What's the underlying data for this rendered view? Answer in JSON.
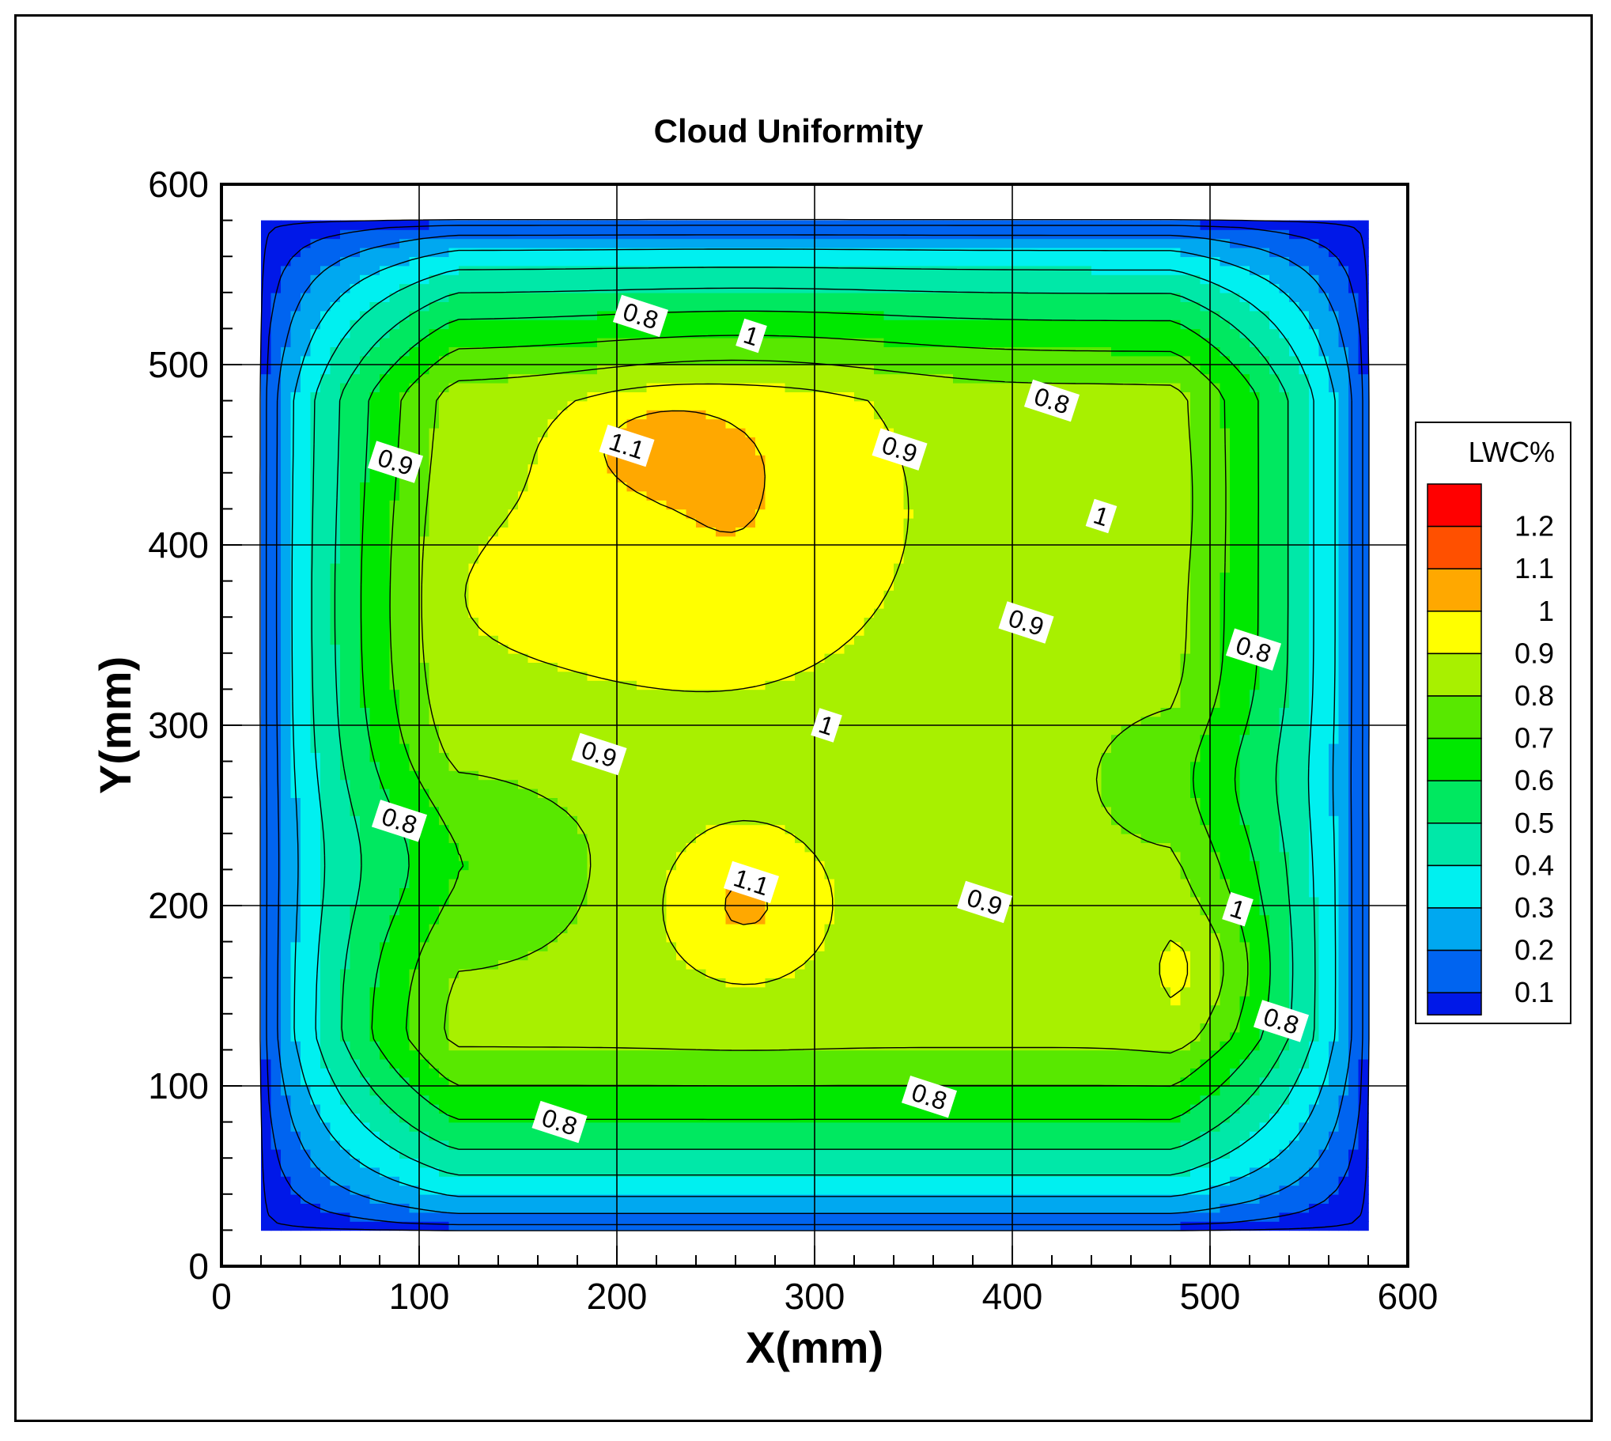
{
  "chart_data": {
    "type": "heatmap",
    "subtype": "filled-contour",
    "title": "Cloud Uniformity",
    "xlabel": "X(mm)",
    "ylabel": "Y(mm)",
    "xlim": [
      0,
      600
    ],
    "ylim": [
      0,
      600
    ],
    "xticks": [
      "0",
      "100",
      "200",
      "300",
      "400",
      "500",
      "600"
    ],
    "yticks": [
      "0",
      "100",
      "200",
      "300",
      "400",
      "500",
      "600"
    ],
    "grid": true,
    "legend": {
      "title": "LWC%",
      "placement": "right",
      "levels": [
        "1.2",
        "1.1",
        "1",
        "0.9",
        "0.8",
        "0.7",
        "0.6",
        "0.5",
        "0.4",
        "0.3",
        "0.2",
        "0.1"
      ]
    },
    "colors": {
      "0.1": "#0018e8",
      "0.2": "#0064f0",
      "0.3": "#00a8f0",
      "0.4": "#00f0f0",
      "0.5": "#00e8a8",
      "0.6": "#00e860",
      "0.7": "#00e800",
      "0.8": "#58e800",
      "0.9": "#a8f000",
      "1": "#ffff00",
      "1.1": "#ffa800",
      "1.2": "#ff5000",
      "1.3": "#ff0000"
    },
    "data_extent": {
      "x": [
        18,
        582
      ],
      "y": [
        18,
        582
      ]
    },
    "contour_labels": [
      {
        "text": "0.8",
        "x": 212,
        "y": 527
      },
      {
        "text": "1",
        "x": 268,
        "y": 516
      },
      {
        "text": "1.1",
        "x": 205,
        "y": 455
      },
      {
        "text": "0.9",
        "x": 88,
        "y": 446
      },
      {
        "text": "0.9",
        "x": 343,
        "y": 453
      },
      {
        "text": "0.8",
        "x": 420,
        "y": 480
      },
      {
        "text": "1",
        "x": 445,
        "y": 416
      },
      {
        "text": "0.9",
        "x": 407,
        "y": 357
      },
      {
        "text": "0.8",
        "x": 522,
        "y": 342
      },
      {
        "text": "1",
        "x": 306,
        "y": 300
      },
      {
        "text": "0.9",
        "x": 191,
        "y": 284
      },
      {
        "text": "0.8",
        "x": 90,
        "y": 247
      },
      {
        "text": "1.1",
        "x": 268,
        "y": 213
      },
      {
        "text": "0.9",
        "x": 386,
        "y": 202
      },
      {
        "text": "1",
        "x": 514,
        "y": 198
      },
      {
        "text": "0.8",
        "x": 536,
        "y": 136
      },
      {
        "text": "0.8",
        "x": 171,
        "y": 80
      },
      {
        "text": "0.8",
        "x": 358,
        "y": 94
      }
    ]
  }
}
